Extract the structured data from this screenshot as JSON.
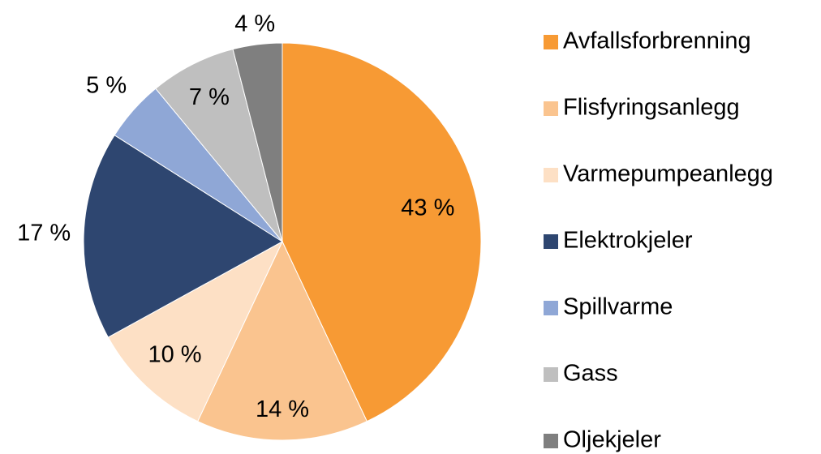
{
  "chart_data": {
    "type": "pie",
    "categories": [
      "Avfallsforbrenning",
      "Flisfyringsanlegg",
      "Varmepumpeanlegg",
      "Elektrokjeler",
      "Spillvarme",
      "Gass",
      "Oljekjeler"
    ],
    "values": [
      43,
      14,
      10,
      17,
      5,
      7,
      4
    ],
    "value_labels": [
      "43 %",
      "14 %",
      "10 %",
      "17 %",
      "5 %",
      "7 %",
      "4 %"
    ],
    "colors": [
      "#f79a34",
      "#fac48f",
      "#fde0c5",
      "#2e4670",
      "#8fa7d6",
      "#bfbfbf",
      "#7f7f7f"
    ],
    "legend": "right"
  }
}
